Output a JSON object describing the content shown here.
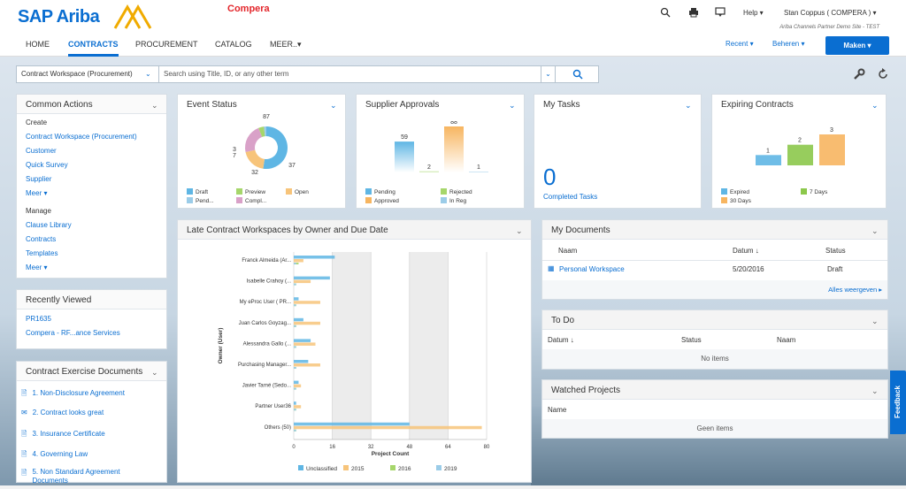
{
  "header": {
    "logo": "SAP Ariba",
    "brand": "Compera",
    "help": "Help ▾",
    "user": "Stan Coppus ( COMPERA ) ▾",
    "site": "Ariba Channels Partner Demo Site - TEST"
  },
  "nav": {
    "tabs": [
      "HOME",
      "CONTRACTS",
      "PROCUREMENT",
      "CATALOG",
      "MEER..▾"
    ],
    "active": 1,
    "recent": "Recent ▾",
    "beheren": "Beheren ▾",
    "maken": "Maken ▾"
  },
  "search": {
    "scope": "Contract Workspace (Procurement)",
    "placeholder": "Search using Title, ID, or any other term"
  },
  "common_actions": {
    "title": "Common Actions",
    "create_label": "Create",
    "create_items": [
      "Contract Workspace (Procurement)",
      "Customer",
      "Quick Survey",
      "Supplier",
      "Meer ▾"
    ],
    "manage_label": "Manage",
    "manage_items": [
      "Clause Library",
      "Contracts",
      "Templates",
      "Meer ▾"
    ]
  },
  "recently_viewed": {
    "title": "Recently Viewed",
    "items": [
      "PR1635",
      "Compera - RF...ance Services"
    ]
  },
  "exercise_docs": {
    "title": "Contract Exercise Documents",
    "items": [
      "1. Non-Disclosure Agreement",
      "2. Contract looks great",
      "3. Insurance Certificate",
      "4. Governing Law",
      "5. Non Standard Agreement Documents"
    ]
  },
  "event_status": {
    "title": "Event Status",
    "legend": [
      "Draft",
      "Preview",
      "Open",
      "Pend...",
      "Compl..."
    ],
    "colors": [
      "#5fb6e4",
      "#a6d66b",
      "#f7c47a",
      "#9bcce8",
      "#d9a1c8"
    ]
  },
  "supplier_approvals": {
    "title": "Supplier Approvals",
    "legend": [
      "Pending",
      "Rejected",
      "Approved",
      "In Reg"
    ],
    "colors": [
      "#5fb6e4",
      "#a6d66b",
      "#f7b560",
      "#9bcce8"
    ]
  },
  "my_tasks": {
    "title": "My Tasks",
    "count": "0",
    "label": "Completed Tasks"
  },
  "expiring": {
    "title": "Expiring Contracts",
    "legend": [
      "Expired",
      "7 Days",
      "30 Days"
    ],
    "colors": [
      "#5fb6e4",
      "#8cc84b",
      "#f7b560"
    ]
  },
  "late_chart": {
    "title": "Late Contract Workspaces by Owner and Due Date",
    "legend": [
      "Unclassified",
      "2015",
      "2016",
      "2019"
    ],
    "colors": [
      "#5fb6e4",
      "#f7c47a",
      "#a6d66b",
      "#9bcce8"
    ]
  },
  "my_documents": {
    "title": "My Documents",
    "cols": [
      "Naam",
      "Datum ↓",
      "Status"
    ],
    "row": {
      "name": "Personal Workspace",
      "date": "5/20/2016",
      "status": "Draft"
    },
    "more": "Alles weergeven ▸"
  },
  "todo": {
    "title": "To Do",
    "cols": [
      "Datum ↓",
      "Status",
      "Naam"
    ],
    "empty": "No items"
  },
  "watched": {
    "title": "Watched Projects",
    "col": "Name",
    "empty": "Geen items"
  },
  "feedback": "Feedback",
  "chart_data": [
    {
      "type": "pie",
      "title": "Event Status",
      "values": [
        87,
        32,
        37,
        7,
        3
      ],
      "labels": [
        "87",
        "32",
        "37",
        "7",
        "3"
      ]
    },
    {
      "type": "bar",
      "title": "Supplier Approvals",
      "categories": [
        "Pending",
        "Rejected",
        "Approved",
        "In Reg"
      ],
      "values": [
        59,
        2,
        88,
        1
      ]
    },
    {
      "type": "bar",
      "title": "Expiring Contracts",
      "categories": [
        "Expired",
        "7 Days",
        "30 Days"
      ],
      "values": [
        1,
        2,
        3
      ]
    },
    {
      "type": "bar",
      "title": "Late Contract Workspaces by Owner and Due Date",
      "orientation": "horizontal",
      "xlabel": "Project Count",
      "ylabel": "Owner (User)",
      "xticks": [
        "0",
        "16",
        "32",
        "48",
        "64",
        "80"
      ],
      "xlim": [
        0,
        80
      ],
      "categories": [
        "Franck Almeida (Ar...",
        "Isabelle Crahoy (...",
        "My eProc User ( PR...",
        "Juan Carlos Goyzag...",
        "Alessandra Gallo (...",
        "Purchasing Manager...",
        "Javier Tarné (Sedo...",
        "Partner User36",
        "Others (50)"
      ],
      "series": [
        {
          "name": "Unclassified",
          "values": [
            17,
            15,
            2,
            4,
            7,
            6,
            2,
            1,
            48
          ]
        },
        {
          "name": "2015",
          "values": [
            4,
            7,
            11,
            11,
            9,
            11,
            3,
            3,
            78
          ]
        },
        {
          "name": "2016",
          "values": [
            2,
            1,
            1,
            1,
            1,
            1,
            1,
            1,
            1
          ]
        },
        {
          "name": "2019",
          "values": [
            1,
            1,
            1,
            1,
            1,
            1,
            1,
            1,
            1
          ]
        }
      ]
    }
  ]
}
